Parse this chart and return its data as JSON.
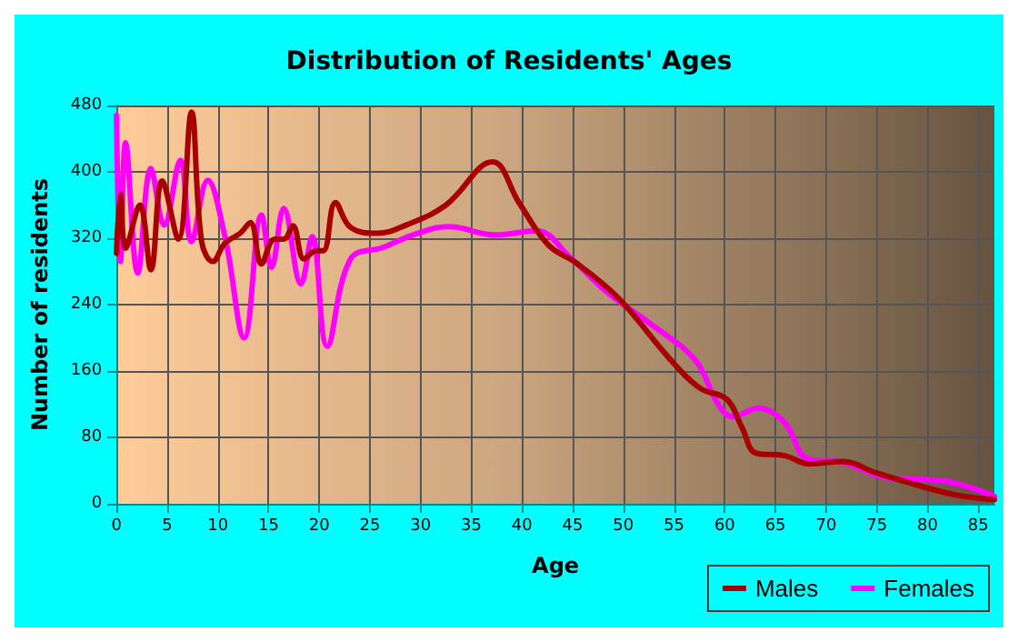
{
  "chart_data": {
    "type": "line",
    "title": "Distribution of Residents' Ages",
    "xlabel": "Age",
    "ylabel": "Number of residents",
    "xlim": [
      0,
      86.6
    ],
    "xticks": [
      0,
      5,
      10,
      15,
      20,
      25,
      30,
      35,
      40,
      45,
      50,
      55,
      60,
      65,
      70,
      75,
      80,
      85
    ],
    "ylim": [
      0,
      480
    ],
    "yticks": [
      0,
      80,
      160,
      240,
      320,
      400,
      480
    ],
    "grid": true,
    "legend": "bottom right",
    "marker": "none",
    "line_style": "solid",
    "series": [
      {
        "name": "Males",
        "color": "#a80000",
        "x": [
          0,
          0.4,
          0.9,
          2.3,
          3.4,
          4.5,
          6.1,
          7.4,
          8.4,
          9.5,
          10.7,
          12.2,
          13.2,
          14.3,
          15.6,
          16.5,
          17.4,
          18.5,
          19.7,
          20.4,
          21.6,
          23.1,
          25.7,
          28.6,
          32.5,
          37.1,
          39.7,
          42.6,
          45.5,
          49.5,
          54.7,
          57.6,
          60.2,
          61.7,
          63.1,
          65.9,
          68.4,
          71.6,
          75,
          79.7,
          83.1,
          86.6
        ],
        "values": [
          302,
          373,
          308,
          360,
          282,
          389,
          319,
          472,
          316,
          292,
          314,
          326,
          339,
          289,
          319,
          319,
          335,
          295,
          305,
          305,
          363,
          333,
          326,
          336,
          360,
          412,
          363,
          312,
          289,
          248,
          173,
          139,
          126,
          92,
          61,
          58,
          48,
          51,
          37,
          20,
          10,
          5
        ]
      },
      {
        "name": "Females",
        "color": "#ff00ff",
        "x": [
          0,
          0.4,
          0.9,
          2.1,
          3.4,
          4.7,
          6.3,
          7.4,
          9,
          10.7,
          12.6,
          14.3,
          15.3,
          16.5,
          18.2,
          19.3,
          20.8,
          23.1,
          26.3,
          29.7,
          32.8,
          37.4,
          41.4,
          44.9,
          48.4,
          53,
          57.1,
          59.4,
          60.8,
          63.3,
          65.9,
          68.2,
          71.6,
          76.2,
          81.4,
          86.6
        ],
        "values": [
          468,
          292,
          435,
          278,
          404,
          336,
          414,
          316,
          390,
          322,
          200,
          348,
          285,
          356,
          265,
          322,
          190,
          295,
          309,
          326,
          334,
          324,
          329,
          295,
          255,
          214,
          173,
          119,
          105,
          115,
          98,
          54,
          50,
          31,
          28,
          9
        ]
      }
    ]
  }
}
